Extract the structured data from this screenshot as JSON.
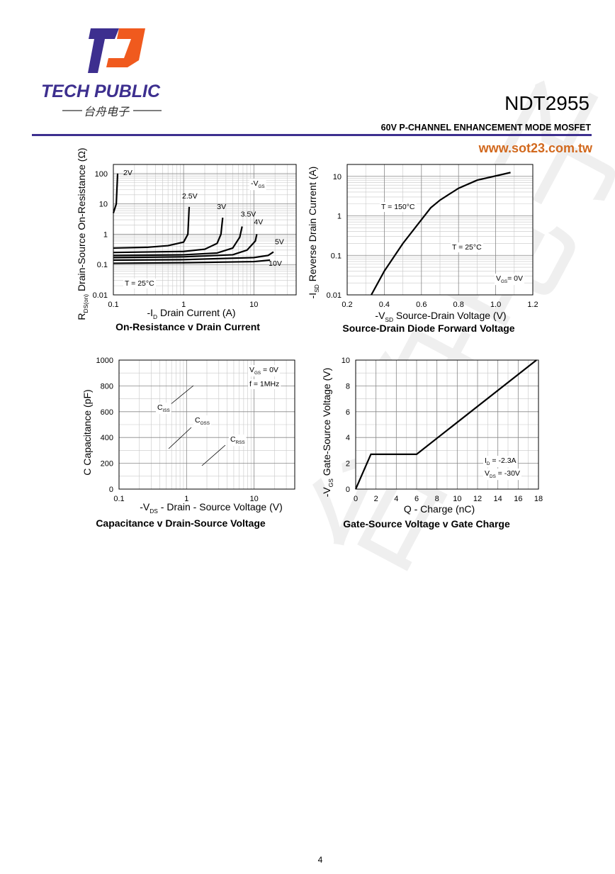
{
  "header": {
    "brand": "TECH PUBLIC",
    "brand_cn": "台舟电子",
    "part_number": "NDT2955",
    "subtitle": "60V P-CHANNEL ENHANCEMENT MODE MOSFET",
    "website": "www.sot23.com.tw"
  },
  "watermark": "台舟电子",
  "page_number": "4",
  "chart_data": [
    {
      "type": "line",
      "title": "On-Resistance v Drain Current",
      "xlabel": [
        "-I",
        "D",
        " Drain Current (A)"
      ],
      "ylabel": [
        "R",
        "DS(on)",
        " Drain-Source On-Resistance (Ω)"
      ],
      "xlog": true,
      "ylog": true,
      "xlim": [
        0.1,
        40
      ],
      "ylim": [
        0.01,
        200
      ],
      "xticks": [
        0.1,
        1,
        10
      ],
      "yticks": [
        0.01,
        0.1,
        1,
        10,
        100
      ],
      "grid": true,
      "minor_grid": true,
      "annotations": [
        [
          "-V",
          "GS"
        ],
        [
          "T = 25°C"
        ]
      ],
      "series": [
        {
          "name": "2V",
          "color": "#000000",
          "x": [
            0.1,
            0.11,
            0.115
          ],
          "values": [
            5,
            10,
            100
          ]
        },
        {
          "name": "2.5V",
          "color": "#000000",
          "x": [
            0.1,
            0.3,
            0.6,
            1,
            1.15,
            1.2
          ],
          "values": [
            0.35,
            0.37,
            0.42,
            0.55,
            1,
            8
          ]
        },
        {
          "name": "3V",
          "color": "#000000",
          "x": [
            0.1,
            1,
            2,
            3,
            3.4,
            3.6
          ],
          "values": [
            0.25,
            0.27,
            0.32,
            0.5,
            1,
            3.5
          ]
        },
        {
          "name": "3.5V",
          "color": "#000000",
          "x": [
            0.1,
            1,
            3,
            5,
            6.3,
            6.8
          ],
          "values": [
            0.2,
            0.21,
            0.24,
            0.35,
            0.8,
            1.8
          ]
        },
        {
          "name": "4V",
          "color": "#000000",
          "x": [
            0.1,
            1,
            5,
            8,
            10.5,
            11
          ],
          "values": [
            0.17,
            0.18,
            0.21,
            0.3,
            0.6,
            1
          ]
        },
        {
          "name": "5V",
          "color": "#000000",
          "x": [
            0.1,
            1,
            10,
            16,
            19
          ],
          "values": [
            0.14,
            0.145,
            0.17,
            0.2,
            0.26
          ]
        },
        {
          "name": "10V",
          "color": "#000000",
          "x": [
            0.1,
            1,
            10,
            17
          ],
          "values": [
            0.11,
            0.115,
            0.125,
            0.14
          ]
        }
      ]
    },
    {
      "type": "line",
      "title": "Source-Drain Diode Forward Voltage",
      "xlabel": [
        "-V",
        "SD",
        " Source-Drain Voltage (V)"
      ],
      "ylabel": [
        "-I",
        "SD",
        " Reverse Drain Current (A)"
      ],
      "xlog": false,
      "ylog": true,
      "xlim": [
        0.2,
        1.2
      ],
      "ylim": [
        0.01,
        20
      ],
      "xticks": [
        0.2,
        0.4,
        0.6,
        0.8,
        {
          "value": 1,
          "label": "1.0"
        },
        1.2
      ],
      "yticks": [
        0.01,
        0.1,
        1,
        10
      ],
      "grid": true,
      "minor_grid": true,
      "annotations": [
        [
          "T = 150°C"
        ],
        [
          "T = 25°C"
        ],
        [
          "V",
          "GS",
          "= 0V"
        ]
      ],
      "series": [
        {
          "color": "#000000",
          "x": [
            0.33,
            0.4,
            0.5,
            0.6,
            0.65,
            0.7,
            0.8,
            0.9,
            1.08
          ],
          "values": [
            0.01,
            0.04,
            0.2,
            0.8,
            1.6,
            2.5,
            5,
            8,
            12.5
          ]
        }
      ]
    },
    {
      "type": "line",
      "title": "Capacitance v Drain-Source Voltage",
      "xlabel": [
        "-V",
        "DS",
        " - Drain - Source Voltage (V)"
      ],
      "ylabel": [
        "C  Capacitance (pF)"
      ],
      "xlog": true,
      "ylog": false,
      "xlim": [
        0.1,
        40
      ],
      "ylim": [
        0,
        1000
      ],
      "xticks": [
        0.1,
        1,
        10
      ],
      "yticks": [
        0,
        200,
        400,
        600,
        800,
        1000
      ],
      "grid": true,
      "minor_grid": true,
      "annotations": [
        [
          "V",
          "GS",
          " = 0V"
        ],
        [
          "f = 1MHz"
        ],
        [
          "C",
          "ISS"
        ],
        [
          "C",
          "OSS"
        ],
        [
          "C",
          "RSS"
        ]
      ],
      "series": []
    },
    {
      "type": "line",
      "title": "Gate-Source Voltage v Gate Charge",
      "xlabel": [
        "Q - Charge (nC)"
      ],
      "ylabel": [
        "-V",
        "GS",
        " Gate-Source Voltage (V)"
      ],
      "xlog": false,
      "ylog": false,
      "xlim": [
        0,
        18
      ],
      "ylim": [
        0,
        10
      ],
      "xticks": [
        0,
        2,
        4,
        6,
        8,
        10,
        12,
        14,
        16,
        18
      ],
      "yticks": [
        0,
        2,
        4,
        6,
        8,
        10
      ],
      "grid": true,
      "minor_grid": true,
      "annotations": [
        [
          "I",
          "D",
          " = -2.3A"
        ],
        [
          "V",
          "DS",
          " = -30V"
        ]
      ],
      "series": [
        {
          "color": "#000000",
          "x": [
            0,
            1.5,
            6,
            17.8
          ],
          "values": [
            0,
            2.7,
            2.7,
            10
          ]
        }
      ]
    }
  ]
}
